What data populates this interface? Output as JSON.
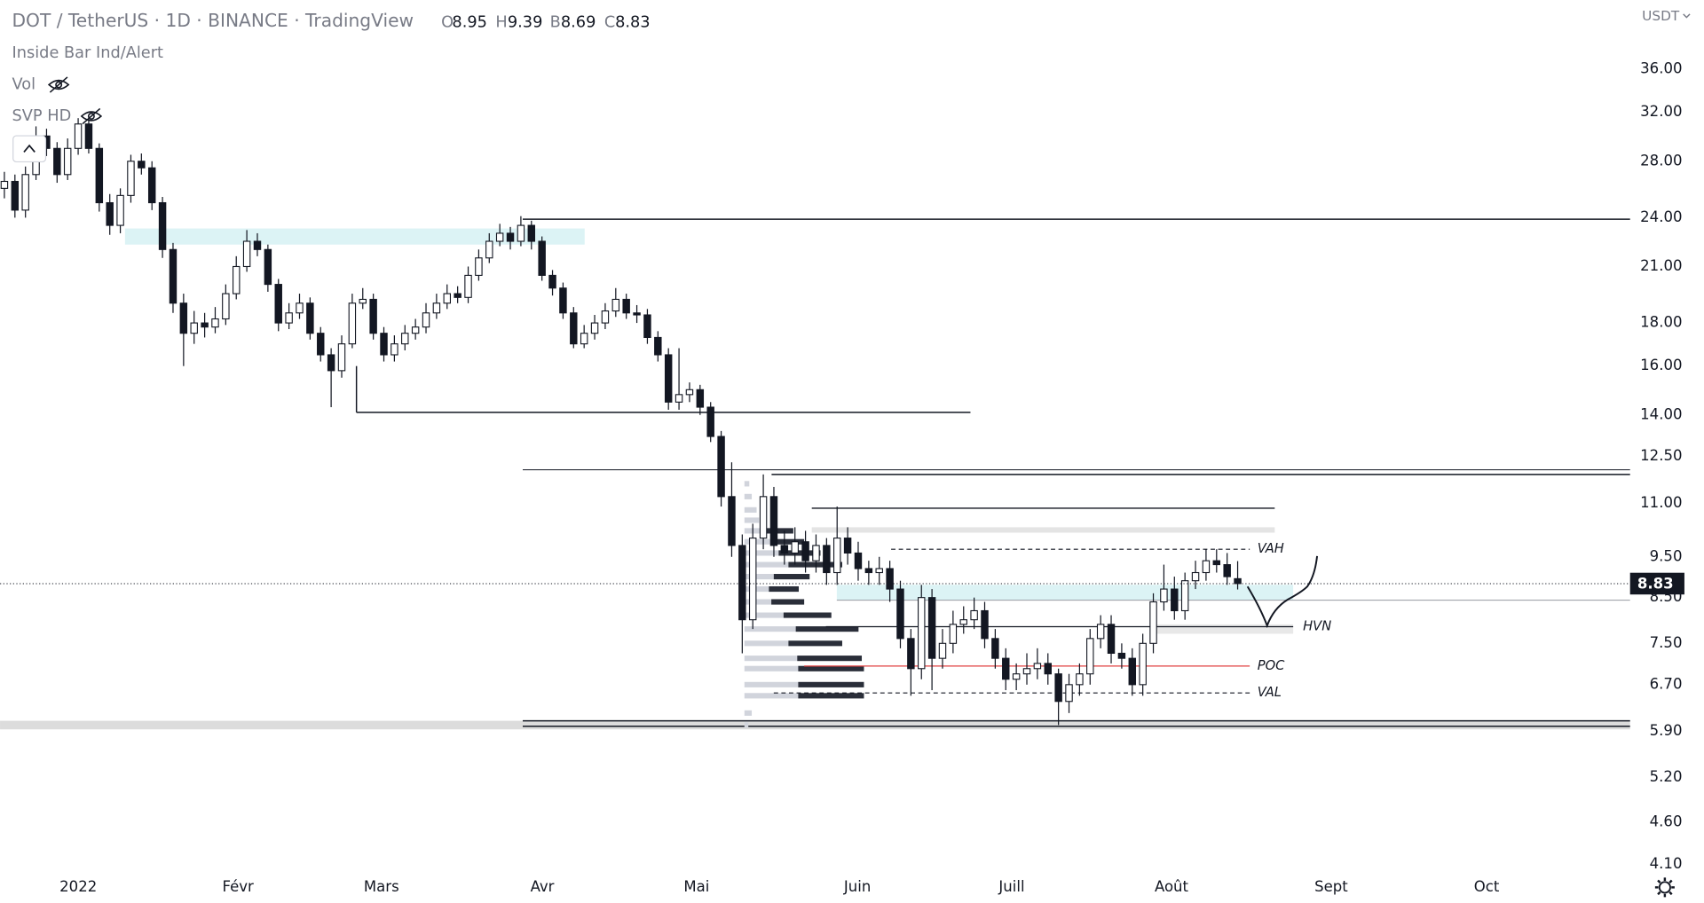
{
  "chart_data": {
    "type": "candlestick",
    "symbol": "DOT / TetherUS · 1D · BINANCE · TradingView",
    "ohlc_letters": [
      "O",
      "H",
      "B",
      "C"
    ],
    "indicators": [
      "Inside Bar Ind/Alert",
      "Vol",
      "SVP HD"
    ],
    "currency": "USDT",
    "log_scale": true,
    "ylim": [
      4.05,
      43.5
    ],
    "yticks": [
      {
        "value": 36,
        "label": "36.00"
      },
      {
        "value": 32,
        "label": "32.00"
      },
      {
        "value": 28,
        "label": "28.00"
      },
      {
        "value": 24,
        "label": "24.00"
      },
      {
        "value": 21,
        "label": "21.00"
      },
      {
        "value": 18,
        "label": "18.00"
      },
      {
        "value": 16,
        "label": "16.00"
      },
      {
        "value": 14,
        "label": "14.00"
      },
      {
        "value": 12.5,
        "label": "12.50"
      },
      {
        "value": 11,
        "label": "11.00"
      },
      {
        "value": 9.5,
        "label": "9.50"
      },
      {
        "value": 8.5,
        "label": "8.50"
      },
      {
        "value": 7.5,
        "label": "7.50"
      },
      {
        "value": 6.7,
        "label": "6.70"
      },
      {
        "value": 5.9,
        "label": "5.90"
      },
      {
        "value": 5.2,
        "label": "5.20"
      },
      {
        "value": 4.6,
        "label": "4.60"
      },
      {
        "value": 4.1,
        "label": "4.10"
      }
    ],
    "xticks": [
      "2022",
      "Févr",
      "Mars",
      "Avr",
      "Mai",
      "Juin",
      "Juill",
      "Août",
      "Sept",
      "Oct"
    ],
    "colors": {
      "up": "#ffffff",
      "down": "#131722",
      "border": "#131722"
    },
    "candles": [
      [
        26,
        27.2,
        25.3,
        26.5
      ],
      [
        26.5,
        27,
        24,
        24.5
      ],
      [
        24.5,
        27.6,
        24,
        27
      ],
      [
        27,
        30.8,
        26.6,
        30
      ],
      [
        30,
        30.6,
        28.4,
        29
      ],
      [
        29,
        29.5,
        26.4,
        27
      ],
      [
        27,
        29.8,
        26.6,
        29
      ],
      [
        29,
        31.5,
        28.5,
        31
      ],
      [
        31,
        31.4,
        28.6,
        29
      ],
      [
        29,
        29.4,
        24.4,
        25
      ],
      [
        25,
        25.6,
        22.9,
        23.5
      ],
      [
        23.5,
        26,
        23,
        25.5
      ],
      [
        25.5,
        28.5,
        25,
        28
      ],
      [
        28,
        28.6,
        27,
        27.5
      ],
      [
        27.5,
        28,
        24.5,
        25
      ],
      [
        25,
        25.4,
        21.5,
        22
      ],
      [
        22,
        22.4,
        18.5,
        19
      ],
      [
        19,
        19.5,
        16,
        17.5
      ],
      [
        17.5,
        18.6,
        17,
        18
      ],
      [
        18,
        18.5,
        17.3,
        17.8
      ],
      [
        17.8,
        18.8,
        17.5,
        18.2
      ],
      [
        18.2,
        20,
        17.9,
        19.5
      ],
      [
        19.5,
        21.6,
        19.2,
        21
      ],
      [
        21,
        23.2,
        20.7,
        22.5
      ],
      [
        22.5,
        23,
        21.6,
        22
      ],
      [
        22,
        22.3,
        19.6,
        20
      ],
      [
        20,
        20.3,
        17.6,
        18
      ],
      [
        18,
        19,
        17.7,
        18.5
      ],
      [
        18.5,
        19.5,
        18.2,
        19
      ],
      [
        19,
        19.3,
        17.2,
        17.5
      ],
      [
        17.5,
        17.8,
        16.2,
        16.5
      ],
      [
        16.5,
        16.8,
        14.3,
        15.8
      ],
      [
        15.8,
        17.4,
        15.5,
        17
      ],
      [
        17,
        19.5,
        16.8,
        19
      ],
      [
        19,
        19.8,
        18.7,
        19.2
      ],
      [
        19.2,
        19.5,
        17.2,
        17.5
      ],
      [
        17.5,
        17.8,
        16.2,
        16.5
      ],
      [
        16.5,
        17.4,
        16.2,
        17
      ],
      [
        17,
        17.9,
        16.7,
        17.5
      ],
      [
        17.5,
        18.2,
        17.2,
        17.8
      ],
      [
        17.8,
        19,
        17.5,
        18.5
      ],
      [
        18.5,
        19.5,
        18.2,
        19
      ],
      [
        19,
        20,
        18.7,
        19.5
      ],
      [
        19.5,
        19.9,
        19,
        19.3
      ],
      [
        19.3,
        21,
        19,
        20.5
      ],
      [
        20.5,
        22,
        20.2,
        21.5
      ],
      [
        21.5,
        23,
        21.2,
        22.5
      ],
      [
        22.5,
        23.6,
        22.2,
        23
      ],
      [
        23,
        23.4,
        22,
        22.5
      ],
      [
        22.5,
        24.1,
        22.2,
        23.5
      ],
      [
        23.5,
        23.8,
        22,
        22.5
      ],
      [
        22.5,
        22.8,
        20.2,
        20.5
      ],
      [
        20.5,
        20.8,
        19.4,
        19.8
      ],
      [
        19.8,
        20.1,
        18.2,
        18.5
      ],
      [
        18.5,
        18.8,
        16.8,
        17
      ],
      [
        17,
        17.9,
        16.8,
        17.5
      ],
      [
        17.5,
        18.4,
        17.2,
        18
      ],
      [
        18,
        19,
        17.7,
        18.6
      ],
      [
        18.6,
        19.8,
        18.3,
        19.2
      ],
      [
        19.2,
        19.5,
        18.2,
        18.5
      ],
      [
        18.5,
        18.9,
        18,
        18.4
      ],
      [
        18.4,
        18.7,
        17,
        17.3
      ],
      [
        17.3,
        17.6,
        16.2,
        16.5
      ],
      [
        16.5,
        16.8,
        14.2,
        14.5
      ],
      [
        14.5,
        16.8,
        14.2,
        14.8
      ],
      [
        14.8,
        15.3,
        14.5,
        15
      ],
      [
        15,
        15.2,
        14,
        14.3
      ],
      [
        14.3,
        14.5,
        13,
        13.2
      ],
      [
        13.2,
        13.4,
        10.9,
        11.2
      ],
      [
        11.2,
        12.3,
        9.5,
        9.8
      ],
      [
        9.8,
        10.1,
        7.3,
        8
      ],
      [
        8,
        10.4,
        7.8,
        10
      ],
      [
        10,
        11.9,
        9.7,
        11.2
      ],
      [
        11.2,
        11.5,
        9.5,
        9.8
      ],
      [
        9.8,
        10.2,
        9.3,
        9.6
      ],
      [
        9.6,
        10.3,
        9.3,
        9.9
      ],
      [
        9.9,
        10.2,
        9.1,
        9.4
      ],
      [
        9.4,
        10.1,
        9.1,
        9.8
      ],
      [
        9.8,
        10,
        8.8,
        9.1
      ],
      [
        9.1,
        10.9,
        8.8,
        10
      ],
      [
        10,
        10.3,
        9.3,
        9.6
      ],
      [
        9.6,
        9.9,
        8.9,
        9.2
      ],
      [
        9.2,
        9.4,
        8.8,
        9.1
      ],
      [
        9.1,
        9.5,
        8.8,
        9.2
      ],
      [
        9.2,
        9.4,
        8.4,
        8.7
      ],
      [
        8.7,
        8.9,
        7.4,
        7.6
      ],
      [
        7.6,
        7.8,
        6.5,
        7
      ],
      [
        7,
        8.8,
        6.8,
        8.5
      ],
      [
        8.5,
        8.7,
        6.6,
        7.2
      ],
      [
        7.2,
        7.8,
        7,
        7.5
      ],
      [
        7.5,
        8.2,
        7.3,
        7.9
      ],
      [
        7.9,
        8.3,
        7.7,
        8
      ],
      [
        8,
        8.5,
        7.8,
        8.2
      ],
      [
        8.2,
        8.4,
        7.4,
        7.6
      ],
      [
        7.6,
        7.8,
        7,
        7.2
      ],
      [
        7.2,
        7.4,
        6.6,
        6.8
      ],
      [
        6.8,
        7.1,
        6.6,
        6.9
      ],
      [
        6.9,
        7.3,
        6.7,
        7
      ],
      [
        7,
        7.4,
        6.8,
        7.1
      ],
      [
        7.1,
        7.3,
        6.7,
        6.9
      ],
      [
        6.9,
        7,
        6,
        6.4
      ],
      [
        6.4,
        6.9,
        6.2,
        6.7
      ],
      [
        6.7,
        7.1,
        6.5,
        6.9
      ],
      [
        6.9,
        7.8,
        6.7,
        7.6
      ],
      [
        7.6,
        8.1,
        7.4,
        7.9
      ],
      [
        7.9,
        8.1,
        7.1,
        7.3
      ],
      [
        7.3,
        7.5,
        7,
        7.2
      ],
      [
        7.2,
        7.4,
        6.5,
        6.7
      ],
      [
        6.7,
        7.7,
        6.5,
        7.5
      ],
      [
        7.5,
        8.6,
        7.3,
        8.4
      ],
      [
        8.4,
        9.3,
        8.2,
        8.7
      ],
      [
        8.7,
        9,
        8,
        8.2
      ],
      [
        8.2,
        9.1,
        8,
        8.9
      ],
      [
        8.9,
        9.4,
        8.7,
        9.1
      ],
      [
        9.1,
        9.7,
        8.9,
        9.4
      ],
      [
        9.4,
        9.7,
        9.1,
        9.3
      ],
      [
        9.3,
        9.6,
        8.8,
        9
      ],
      [
        8.95,
        9.39,
        8.69,
        8.83
      ]
    ],
    "zones": [
      {
        "low": 22.3,
        "high": 23.3,
        "color": "#dcf3f5"
      },
      {
        "low": 8.45,
        "high": 8.8,
        "color": "#dcf3f5"
      },
      {
        "low": 10.15,
        "high": 10.3,
        "color": "#e4e4e4"
      },
      {
        "low": 7.7,
        "high": 7.9,
        "color": "#e8e8e8"
      },
      {
        "low": 5.93,
        "high": 6.07,
        "color": "#dcdcdc"
      }
    ],
    "levels": [
      23.9,
      14.1,
      12.05,
      11.9,
      10.85,
      8.44,
      6.07,
      5.98
    ],
    "annotations": [
      {
        "label": "VAH",
        "value": 9.7,
        "color": "#131722"
      },
      {
        "label": "HVN",
        "value": 7.85,
        "color": "#131722"
      },
      {
        "label": "POC",
        "value": 7.05,
        "color": "#e04040"
      },
      {
        "label": "VAL",
        "value": 6.55,
        "color": "#131722"
      }
    ],
    "volume_profile": {
      "prices": [
        6.0,
        6.2,
        6.5,
        6.7,
        7.0,
        7.2,
        7.5,
        7.8,
        8.1,
        8.4,
        8.7,
        9.0,
        9.3,
        9.6,
        9.9,
        10.2,
        10.5,
        10.8,
        11.2,
        11.6
      ],
      "volumes": [
        8,
        15,
        110,
        110,
        110,
        108,
        90,
        105,
        80,
        55,
        50,
        60,
        90,
        70,
        55,
        45,
        30,
        25,
        15,
        10
      ]
    }
  }
}
